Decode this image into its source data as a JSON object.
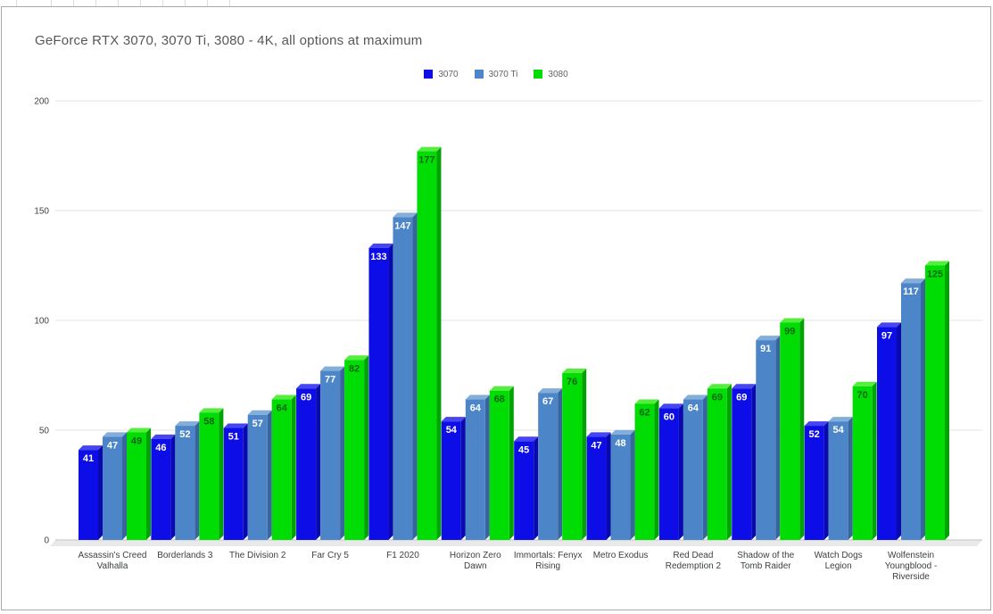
{
  "title": "GeForce RTX 3070, 3070 Ti, 3080 - 4K, all options at maximum",
  "chart_data": {
    "type": "bar",
    "style": "3d-column",
    "title": "GeForce RTX 3070, 3070 Ti, 3080 - 4K, all options at maximum",
    "categories": [
      "Assassin's Creed Valhalla",
      "Borderlands 3",
      "The Division 2",
      "Far Cry 5",
      "F1 2020",
      "Horizon Zero Dawn",
      "Immortals: Fenyx Rising",
      "Metro Exodus",
      "Red Dead Redemption 2",
      "Shadow of the Tomb Raider",
      "Watch Dogs Legion",
      "Wolfenstein Youngblood - Riverside"
    ],
    "series": [
      {
        "name": "3070",
        "color": "#0d0de8",
        "side_color": "#0909ad",
        "top_color": "#4545f2",
        "label_color": "#ffffff",
        "values": [
          41,
          46,
          51,
          69,
          133,
          54,
          45,
          47,
          60,
          69,
          52,
          97
        ]
      },
      {
        "name": "3070 Ti",
        "color": "#4d86c8",
        "side_color": "#38659c",
        "top_color": "#83aeda",
        "label_color": "#ffffff",
        "values": [
          47,
          52,
          57,
          77,
          147,
          64,
          67,
          48,
          64,
          91,
          54,
          117
        ]
      },
      {
        "name": "3080",
        "color": "#00dd05",
        "side_color": "#00a303",
        "top_color": "#55ee3f",
        "label_color": "#0c660c",
        "values": [
          49,
          58,
          64,
          82,
          177,
          68,
          76,
          62,
          69,
          99,
          70,
          125
        ]
      }
    ],
    "ylim": [
      0,
      200
    ],
    "y_ticks": [
      0,
      50,
      100,
      150,
      200
    ],
    "xlabel": "",
    "ylabel": "",
    "grid": true,
    "legend_position": "top-center",
    "value_labels": "inside-top",
    "gridline_color": "#e3e3e3",
    "baseline_color": "#c2c2c2",
    "floor_color": "#e9e9e9",
    "axis_text_color": "#424242",
    "category_text_color": "#3c4043"
  }
}
